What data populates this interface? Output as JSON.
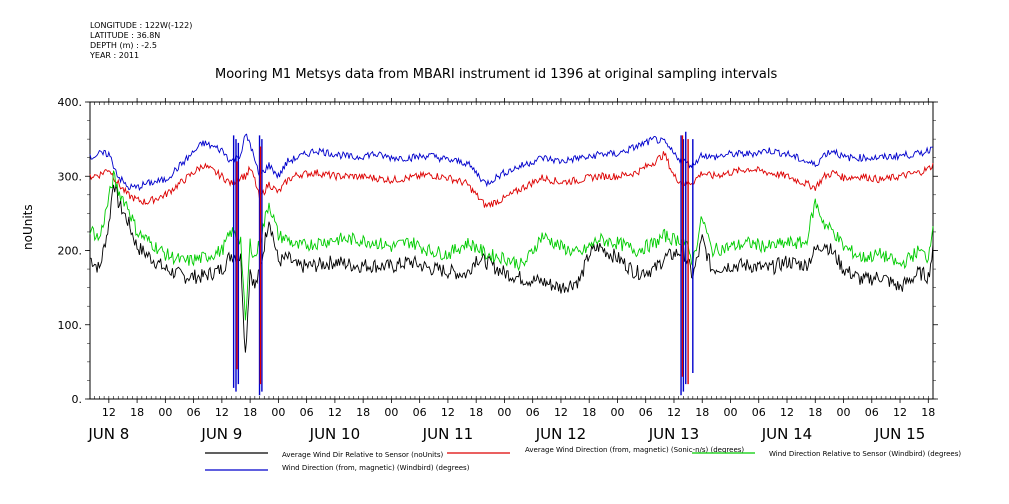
{
  "header": {
    "longitude": "LONGITUDE : 122W(-122)",
    "latitude": "LATITUDE : 36.8N",
    "depth": "DEPTH (m) : -2.5",
    "year": "YEAR : 2011"
  },
  "chart_data": {
    "type": "line",
    "title": "Mooring M1 Metsys data from MBARI instrument id 1396 at original sampling intervals",
    "ylabel": "noUnits",
    "xlabel": "",
    "ylim": [
      0,
      400
    ],
    "xlim_hours_from_jun8_00": [
      8,
      187
    ],
    "y_ticks": [
      "0.",
      "100.",
      "200.",
      "300.",
      "400."
    ],
    "x_hour_ticks": [
      "12",
      "18",
      "00",
      "06",
      "12",
      "18",
      "00",
      "06",
      "12",
      "18",
      "00",
      "06",
      "12",
      "18",
      "00",
      "06",
      "12",
      "18",
      "00",
      "06",
      "12",
      "18",
      "00",
      "06",
      "12",
      "18",
      "00",
      "06",
      "12",
      "18",
      "00",
      "06"
    ],
    "x_day_labels": [
      "JUN  8",
      "JUN  9",
      "JUN 10",
      "JUN 11",
      "JUN 12",
      "JUN 13",
      "JUN 14",
      "JUN 15"
    ],
    "grid": false,
    "series": [
      {
        "name": "Average Wind Dir Relative to Sensor (noUnits)",
        "color": "#000000",
        "x_hours": [
          8,
          10,
          12,
          13,
          14,
          16,
          18,
          20,
          24,
          28,
          32,
          36,
          38,
          40,
          41,
          42,
          43,
          44,
          46,
          48,
          50,
          52,
          56,
          60,
          64,
          68,
          72,
          76,
          80,
          84,
          88,
          90,
          92,
          96,
          100,
          104,
          108,
          112,
          114,
          116,
          120,
          124,
          128,
          130,
          132,
          134,
          136,
          138,
          140,
          144,
          148,
          152,
          156,
          160,
          162,
          164,
          166,
          168,
          172,
          176,
          180,
          184,
          186,
          187
        ],
        "values": [
          190,
          175,
          235,
          295,
          265,
          240,
          205,
          195,
          175,
          165,
          165,
          175,
          195,
          190,
          60,
          175,
          150,
          170,
          245,
          185,
          190,
          178,
          180,
          185,
          180,
          180,
          178,
          185,
          176,
          172,
          168,
          190,
          185,
          170,
          162,
          158,
          150,
          160,
          195,
          205,
          190,
          170,
          175,
          190,
          195,
          200,
          165,
          215,
          175,
          180,
          180,
          175,
          185,
          180,
          200,
          210,
          195,
          175,
          160,
          165,
          150,
          170,
          165,
          200
        ]
      },
      {
        "name": "Average Wind Direction (from, magnetic) (Sonic-n/s) (degrees)",
        "color": "#dd0000",
        "x_hours": [
          8,
          10,
          12,
          14,
          16,
          18,
          20,
          24,
          28,
          32,
          36,
          38,
          40,
          41,
          42,
          43,
          44,
          46,
          48,
          50,
          52,
          56,
          60,
          64,
          68,
          72,
          76,
          80,
          84,
          88,
          90,
          92,
          96,
          100,
          104,
          108,
          112,
          114,
          116,
          120,
          124,
          128,
          130,
          132,
          134,
          136,
          138,
          140,
          144,
          148,
          152,
          156,
          160,
          162,
          164,
          166,
          168,
          172,
          176,
          180,
          184,
          186,
          187
        ],
        "values": [
          300,
          302,
          310,
          290,
          275,
          268,
          265,
          275,
          295,
          315,
          300,
          290,
          300,
          300,
          310,
          295,
          270,
          290,
          278,
          295,
          302,
          305,
          300,
          300,
          298,
          295,
          298,
          302,
          298,
          290,
          275,
          260,
          270,
          285,
          298,
          292,
          295,
          298,
          300,
          300,
          305,
          320,
          330,
          300,
          290,
          292,
          305,
          300,
          305,
          310,
          305,
          300,
          290,
          285,
          300,
          305,
          298,
          300,
          295,
          300,
          305,
          310,
          315
        ]
      },
      {
        "name": "Wind Direction Relative to Sensor (Windbird) (degrees)",
        "color": "#00cc00",
        "x_hours": [
          8,
          10,
          12,
          13,
          14,
          16,
          18,
          20,
          24,
          28,
          32,
          36,
          38,
          40,
          41,
          42,
          43,
          44,
          46,
          48,
          50,
          52,
          56,
          60,
          64,
          68,
          72,
          76,
          80,
          84,
          88,
          90,
          92,
          96,
          100,
          104,
          108,
          112,
          114,
          116,
          120,
          124,
          128,
          130,
          132,
          134,
          136,
          138,
          140,
          144,
          148,
          152,
          156,
          160,
          162,
          164,
          166,
          168,
          172,
          176,
          180,
          184,
          186,
          187
        ],
        "values": [
          230,
          215,
          270,
          300,
          280,
          260,
          225,
          215,
          195,
          185,
          190,
          200,
          225,
          215,
          100,
          210,
          190,
          210,
          265,
          220,
          215,
          205,
          210,
          215,
          215,
          212,
          205,
          212,
          200,
          195,
          210,
          205,
          195,
          190,
          180,
          220,
          205,
          195,
          205,
          215,
          210,
          200,
          210,
          220,
          215,
          215,
          185,
          245,
          200,
          205,
          210,
          205,
          210,
          210,
          265,
          235,
          225,
          205,
          190,
          195,
          180,
          200,
          190,
          240
        ]
      },
      {
        "name": "Wind Direction (from, magnetic) (Windbird) (degrees)",
        "color": "#0000cc",
        "x_hours": [
          8,
          10,
          12,
          14,
          16,
          18,
          20,
          24,
          28,
          32,
          36,
          38,
          40,
          41,
          42,
          43,
          44,
          46,
          48,
          50,
          52,
          56,
          60,
          64,
          68,
          72,
          76,
          80,
          84,
          88,
          90,
          92,
          96,
          100,
          104,
          108,
          112,
          114,
          116,
          120,
          124,
          128,
          130,
          132,
          134,
          136,
          138,
          140,
          144,
          148,
          152,
          156,
          160,
          162,
          164,
          166,
          168,
          172,
          176,
          180,
          184,
          186,
          187
        ],
        "values": [
          325,
          330,
          330,
          300,
          285,
          285,
          290,
          295,
          320,
          345,
          335,
          320,
          330,
          355,
          345,
          320,
          300,
          315,
          300,
          320,
          325,
          335,
          330,
          325,
          330,
          325,
          325,
          328,
          322,
          318,
          305,
          290,
          305,
          315,
          325,
          320,
          325,
          325,
          330,
          330,
          340,
          350,
          345,
          330,
          320,
          315,
          330,
          325,
          330,
          330,
          335,
          330,
          320,
          315,
          330,
          335,
          325,
          325,
          325,
          328,
          330,
          335,
          340
        ]
      }
    ],
    "spikes": [
      {
        "series": 3,
        "x_hours": [
          38.5,
          39,
          39.5,
          44,
          44.5
        ],
        "lows": [
          15,
          10,
          20,
          5,
          10
        ],
        "highs": [
          355,
          350,
          345,
          355,
          350
        ]
      },
      {
        "series": 1,
        "x_hours": [
          39.2,
          44.2
        ],
        "lows": [
          40,
          20
        ],
        "highs": [
          320,
          340
        ]
      },
      {
        "series": 3,
        "x_hours": [
          133.5,
          134,
          134.5,
          136
        ],
        "lows": [
          5,
          10,
          20,
          35
        ],
        "highs": [
          355,
          350,
          360,
          350
        ]
      },
      {
        "series": 1,
        "x_hours": [
          133.8,
          135
        ],
        "lows": [
          30,
          20
        ],
        "highs": [
          355,
          350
        ]
      }
    ]
  }
}
